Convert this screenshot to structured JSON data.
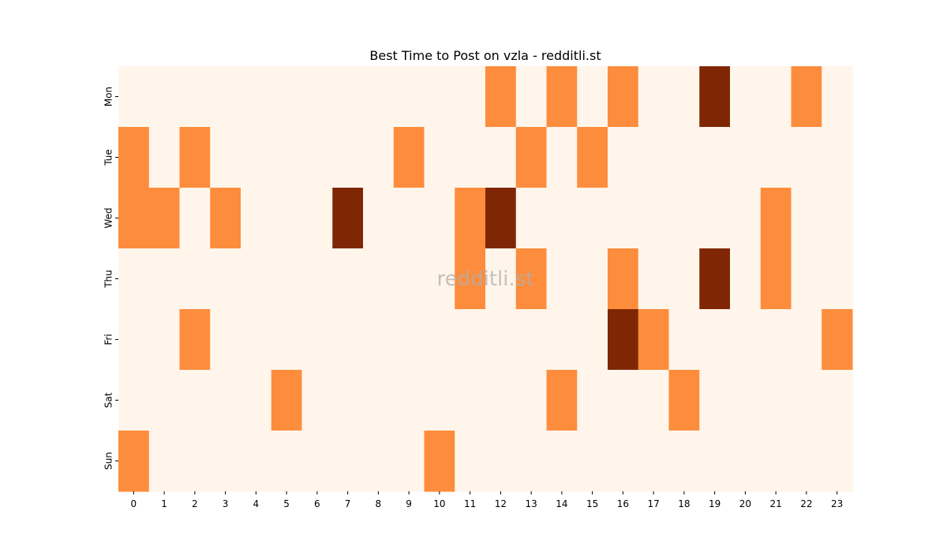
{
  "chart_data": {
    "type": "heatmap",
    "title": "Best Time to Post on vzla - redditli.st",
    "watermark": "redditli.st",
    "x_categories": [
      "0",
      "1",
      "2",
      "3",
      "4",
      "5",
      "6",
      "7",
      "8",
      "9",
      "10",
      "11",
      "12",
      "13",
      "14",
      "15",
      "16",
      "17",
      "18",
      "19",
      "20",
      "21",
      "22",
      "23"
    ],
    "y_categories": [
      "Mon",
      "Tue",
      "Wed",
      "Thu",
      "Fri",
      "Sat",
      "Sun"
    ],
    "values": [
      [
        0,
        0,
        0,
        0,
        0,
        0,
        0,
        0,
        0,
        0,
        0,
        0,
        1,
        0,
        1,
        0,
        1,
        0,
        0,
        2,
        0,
        0,
        1,
        0
      ],
      [
        1,
        0,
        1,
        0,
        0,
        0,
        0,
        0,
        0,
        1,
        0,
        0,
        0,
        1,
        0,
        1,
        0,
        0,
        0,
        0,
        0,
        0,
        0,
        0
      ],
      [
        1,
        1,
        0,
        1,
        0,
        0,
        0,
        2,
        0,
        0,
        0,
        1,
        2,
        0,
        0,
        0,
        0,
        0,
        0,
        0,
        0,
        1,
        0,
        0
      ],
      [
        0,
        0,
        0,
        0,
        0,
        0,
        0,
        0,
        0,
        0,
        0,
        1,
        0,
        1,
        0,
        0,
        1,
        0,
        0,
        2,
        0,
        1,
        0,
        0
      ],
      [
        0,
        0,
        1,
        0,
        0,
        0,
        0,
        0,
        0,
        0,
        0,
        0,
        0,
        0,
        0,
        0,
        2,
        1,
        0,
        0,
        0,
        0,
        0,
        1
      ],
      [
        0,
        0,
        0,
        0,
        0,
        1,
        0,
        0,
        0,
        0,
        0,
        0,
        0,
        0,
        1,
        0,
        0,
        0,
        1,
        0,
        0,
        0,
        0,
        0
      ],
      [
        1,
        0,
        0,
        0,
        0,
        0,
        0,
        0,
        0,
        0,
        1,
        0,
        0,
        0,
        0,
        0,
        0,
        0,
        0,
        0,
        0,
        0,
        0,
        0
      ]
    ],
    "colormap": [
      "#fff5eb",
      "#fd8d3c",
      "#7f2704"
    ],
    "colorbar": false,
    "grid": false
  }
}
